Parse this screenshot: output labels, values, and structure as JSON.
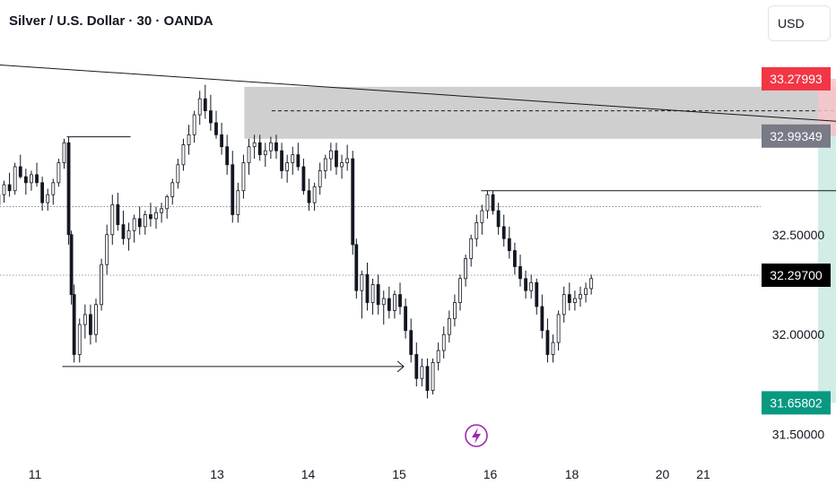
{
  "header": {
    "title": "Silver / U.S. Dollar · 30 · OANDA",
    "currency": "USD"
  },
  "colors": {
    "up": "#131722",
    "stop_tag": "#f23645",
    "entry_tag": "#787b86",
    "target_tag": "#089981",
    "last_tag": "#000000",
    "stop_zone": "#f7c6cb",
    "target_zone": "#d2ece6",
    "supply_zone": "#cfcfcf",
    "replay_icon": "#9c27b0"
  },
  "chart_data": {
    "type": "candlestick",
    "ylim": [
      31.44,
      33.54
    ],
    "y_ticks": [
      "32.50000",
      "32.00000",
      "31.50000"
    ],
    "x_ticks": [
      "11",
      "13",
      "14",
      "15",
      "16",
      "18",
      "20",
      "21"
    ],
    "price_tags": {
      "stop": "33.27993",
      "entry": "32.99349",
      "last": "32.29700",
      "target": "31.65802"
    },
    "position": {
      "entry": 32.99349,
      "stop": 33.27993,
      "target": 31.65802,
      "start_date": 19.6,
      "end_date": 21.6
    },
    "supply_zone": {
      "top": 33.24,
      "bottom": 32.98,
      "mid": 33.12,
      "start_date": 13.3,
      "end_date": 21.6
    },
    "trendline": {
      "from": [
        10.6,
        33.35
      ],
      "to": [
        22.0,
        33.0
      ]
    },
    "levels": [
      {
        "name": "high-line",
        "price": 32.99,
        "from": 11.35,
        "to": 12.05
      },
      {
        "name": "mid-line",
        "price": 32.72,
        "from": 15.9,
        "to": 20.9
      },
      {
        "name": "low-arrow",
        "price": 31.84,
        "from": 11.3,
        "to": 15.05
      }
    ],
    "dotted_levels": [
      32.64,
      32.297
    ],
    "candles": [
      [
        10.6,
        32.65,
        32.72,
        32.59,
        32.7
      ],
      [
        10.66,
        32.7,
        32.77,
        32.66,
        32.75
      ],
      [
        10.72,
        32.75,
        32.81,
        32.69,
        32.72
      ],
      [
        10.78,
        32.72,
        32.86,
        32.7,
        32.84
      ],
      [
        10.84,
        32.84,
        32.9,
        32.78,
        32.79
      ],
      [
        10.9,
        32.79,
        32.83,
        32.7,
        32.76
      ],
      [
        10.96,
        32.76,
        32.82,
        32.72,
        32.8
      ],
      [
        11.02,
        32.8,
        32.86,
        32.74,
        32.76
      ],
      [
        11.08,
        32.76,
        32.79,
        32.62,
        32.66
      ],
      [
        11.14,
        32.66,
        32.73,
        32.62,
        32.7
      ],
      [
        11.2,
        32.7,
        32.78,
        32.65,
        32.76
      ],
      [
        11.26,
        32.76,
        32.88,
        32.74,
        32.86
      ],
      [
        11.32,
        32.86,
        32.98,
        32.83,
        32.96
      ],
      [
        11.37,
        32.96,
        32.99,
        32.45,
        32.5
      ],
      [
        11.4,
        32.5,
        32.52,
        32.15,
        32.2
      ],
      [
        11.43,
        32.2,
        32.25,
        31.86,
        31.9
      ],
      [
        11.49,
        31.9,
        32.08,
        31.86,
        32.05
      ],
      [
        11.55,
        32.05,
        32.15,
        31.98,
        32.1
      ],
      [
        11.61,
        32.1,
        32.15,
        31.95,
        32.0
      ],
      [
        11.67,
        32.0,
        32.18,
        31.96,
        32.15
      ],
      [
        11.73,
        32.15,
        32.38,
        32.12,
        32.35
      ],
      [
        11.79,
        32.35,
        32.55,
        32.3,
        32.5
      ],
      [
        11.85,
        32.5,
        32.7,
        32.45,
        32.65
      ],
      [
        11.91,
        32.65,
        32.71,
        32.52,
        32.55
      ],
      [
        11.97,
        32.55,
        32.62,
        32.45,
        32.48
      ],
      [
        12.03,
        32.48,
        32.56,
        32.42,
        32.52
      ],
      [
        12.09,
        32.52,
        32.6,
        32.46,
        32.58
      ],
      [
        12.15,
        32.58,
        32.64,
        32.5,
        32.54
      ],
      [
        12.21,
        32.54,
        32.62,
        32.5,
        32.6
      ],
      [
        12.27,
        32.6,
        32.66,
        32.54,
        32.58
      ],
      [
        12.33,
        32.58,
        32.64,
        32.53,
        32.61
      ],
      [
        12.39,
        32.61,
        32.66,
        32.56,
        32.63
      ],
      [
        12.45,
        32.63,
        32.7,
        32.58,
        32.69
      ],
      [
        12.51,
        32.69,
        32.78,
        32.65,
        32.76
      ],
      [
        12.57,
        32.76,
        32.88,
        32.73,
        32.85
      ],
      [
        12.63,
        32.85,
        32.98,
        32.82,
        32.95
      ],
      [
        12.69,
        32.95,
        33.05,
        32.9,
        33.0
      ],
      [
        12.75,
        33.0,
        33.12,
        32.96,
        33.1
      ],
      [
        12.81,
        33.1,
        33.22,
        33.05,
        33.18
      ],
      [
        12.87,
        33.18,
        33.25,
        33.08,
        33.12
      ],
      [
        12.93,
        33.12,
        33.2,
        33.02,
        33.06
      ],
      [
        12.99,
        33.06,
        33.12,
        32.98,
        33.0
      ],
      [
        13.05,
        33.0,
        33.06,
        32.9,
        32.94
      ],
      [
        13.11,
        32.94,
        33.0,
        32.8,
        32.85
      ],
      [
        13.17,
        32.85,
        32.92,
        32.56,
        32.6
      ],
      [
        13.23,
        32.6,
        32.76,
        32.56,
        32.72
      ],
      [
        13.29,
        32.72,
        32.9,
        32.68,
        32.86
      ],
      [
        13.35,
        32.86,
        32.98,
        32.8,
        32.94
      ],
      [
        13.41,
        32.94,
        33.0,
        32.88,
        32.96
      ],
      [
        13.47,
        32.96,
        33.0,
        32.87,
        32.9
      ],
      [
        13.53,
        32.9,
        32.96,
        32.84,
        32.92
      ],
      [
        13.59,
        32.92,
        32.99,
        32.88,
        32.96
      ],
      [
        13.65,
        32.96,
        33.0,
        32.88,
        32.92
      ],
      [
        13.71,
        32.92,
        32.96,
        32.78,
        32.82
      ],
      [
        13.77,
        32.82,
        32.9,
        32.76,
        32.86
      ],
      [
        13.83,
        32.86,
        32.94,
        32.8,
        32.9
      ],
      [
        13.89,
        32.9,
        32.96,
        32.82,
        32.84
      ],
      [
        13.95,
        32.84,
        32.88,
        32.7,
        32.72
      ],
      [
        14.01,
        32.72,
        32.78,
        32.62,
        32.66
      ],
      [
        14.07,
        32.66,
        32.76,
        32.62,
        32.74
      ],
      [
        14.13,
        32.74,
        32.86,
        32.7,
        32.82
      ],
      [
        14.19,
        32.82,
        32.9,
        32.78,
        32.88
      ],
      [
        14.25,
        32.88,
        32.96,
        32.82,
        32.92
      ],
      [
        14.31,
        32.92,
        32.96,
        32.8,
        32.84
      ],
      [
        14.37,
        32.84,
        32.9,
        32.78,
        32.86
      ],
      [
        14.43,
        32.86,
        32.95,
        32.82,
        32.88
      ],
      [
        14.49,
        32.88,
        32.92,
        32.4,
        32.45
      ],
      [
        14.53,
        32.45,
        32.48,
        32.18,
        32.22
      ],
      [
        14.59,
        32.22,
        32.32,
        32.08,
        32.3
      ],
      [
        14.65,
        32.3,
        32.36,
        32.12,
        32.16
      ],
      [
        14.71,
        32.16,
        32.28,
        32.1,
        32.25
      ],
      [
        14.77,
        32.25,
        32.3,
        32.1,
        32.15
      ],
      [
        14.83,
        32.15,
        32.22,
        32.05,
        32.18
      ],
      [
        14.89,
        32.18,
        32.24,
        32.08,
        32.12
      ],
      [
        14.95,
        32.12,
        32.22,
        32.08,
        32.2
      ],
      [
        15.01,
        32.2,
        32.26,
        32.1,
        32.14
      ],
      [
        15.07,
        32.14,
        32.18,
        31.98,
        32.02
      ],
      [
        15.13,
        32.02,
        32.08,
        31.86,
        31.9
      ],
      [
        15.19,
        31.9,
        31.96,
        31.74,
        31.78
      ],
      [
        15.25,
        31.78,
        31.88,
        31.74,
        31.84
      ],
      [
        15.31,
        31.84,
        31.88,
        31.68,
        31.72
      ],
      [
        15.37,
        31.72,
        31.88,
        31.7,
        31.86
      ],
      [
        15.43,
        31.86,
        31.96,
        31.82,
        31.92
      ],
      [
        15.49,
        31.92,
        32.04,
        31.88,
        32.0
      ],
      [
        15.55,
        32.0,
        32.12,
        31.96,
        32.08
      ],
      [
        15.61,
        32.08,
        32.2,
        32.04,
        32.16
      ],
      [
        15.67,
        32.16,
        32.3,
        32.12,
        32.28
      ],
      [
        15.73,
        32.28,
        32.4,
        32.24,
        32.38
      ],
      [
        15.79,
        32.38,
        32.5,
        32.34,
        32.48
      ],
      [
        15.85,
        32.48,
        32.6,
        32.44,
        32.56
      ],
      [
        15.91,
        32.56,
        32.65,
        32.5,
        32.62
      ],
      [
        15.97,
        32.62,
        32.72,
        32.58,
        32.7
      ],
      [
        16.03,
        32.7,
        32.72,
        32.6,
        32.62
      ],
      [
        16.09,
        32.62,
        32.66,
        32.5,
        32.54
      ],
      [
        16.15,
        32.54,
        32.6,
        32.44,
        32.48
      ],
      [
        16.21,
        32.48,
        32.54,
        32.38,
        32.42
      ],
      [
        16.27,
        32.42,
        32.46,
        32.3,
        32.34
      ],
      [
        16.33,
        32.34,
        32.4,
        32.24,
        32.28
      ],
      [
        16.39,
        32.28,
        32.32,
        32.18,
        32.22
      ],
      [
        16.45,
        32.22,
        32.3,
        32.18,
        32.26
      ],
      [
        16.51,
        32.26,
        32.28,
        32.1,
        32.14
      ],
      [
        16.57,
        32.14,
        32.2,
        31.98,
        32.02
      ],
      [
        16.63,
        32.02,
        32.08,
        31.86,
        31.9
      ],
      [
        16.69,
        31.9,
        32.0,
        31.86,
        31.96
      ],
      [
        16.75,
        31.96,
        32.12,
        31.92,
        32.1
      ],
      [
        16.81,
        32.1,
        32.24,
        32.06,
        32.2
      ],
      [
        16.87,
        32.2,
        32.26,
        32.12,
        32.16
      ],
      [
        16.93,
        32.16,
        32.22,
        32.12,
        32.18
      ],
      [
        16.99,
        32.18,
        32.24,
        32.14,
        32.2
      ],
      [
        17.05,
        32.2,
        32.26,
        32.16,
        32.23
      ],
      [
        17.11,
        32.23,
        32.3,
        32.2,
        32.28
      ]
    ]
  }
}
